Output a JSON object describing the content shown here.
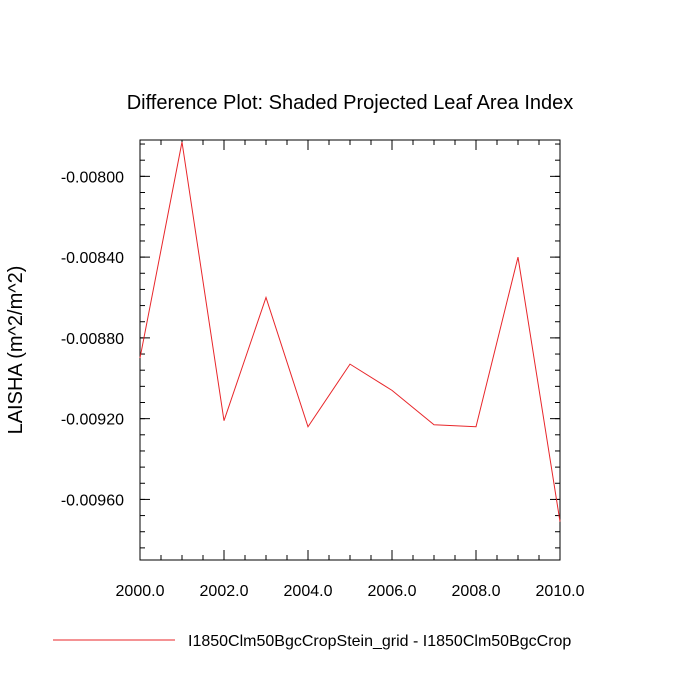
{
  "chart_data": {
    "type": "line",
    "title": "Difference Plot: Shaded Projected Leaf Area Index",
    "xlabel": "",
    "ylabel": "LAISHA  (m^2/m^2)",
    "xlim": [
      2000,
      2010
    ],
    "ylim": [
      -0.0099,
      -0.00782
    ],
    "x_ticks": [
      2000,
      2002,
      2004,
      2006,
      2008,
      2010
    ],
    "x_tick_labels": [
      "2000.0",
      "2002.0",
      "2004.0",
      "2006.0",
      "2008.0",
      "2010.0"
    ],
    "y_ticks": [
      -0.008,
      -0.0084,
      -0.0088,
      -0.0092,
      -0.0096
    ],
    "y_tick_labels": [
      "-0.00800",
      "-0.00840",
      "-0.00880",
      "-0.00920",
      "-0.00960"
    ],
    "series": [
      {
        "name": "I1850Clm50BgcCropStein_grid - I1850Clm50BgcCrop",
        "color": "#e8262a",
        "x": [
          2000,
          2001,
          2002,
          2003,
          2004,
          2005,
          2006,
          2007,
          2008,
          2009,
          2010
        ],
        "values": [
          -0.0089,
          -0.00783,
          -0.00921,
          -0.0086,
          -0.00924,
          -0.00893,
          -0.00906,
          -0.00923,
          -0.00924,
          -0.0084,
          -0.00971
        ]
      }
    ],
    "legend_position": "bottom"
  }
}
